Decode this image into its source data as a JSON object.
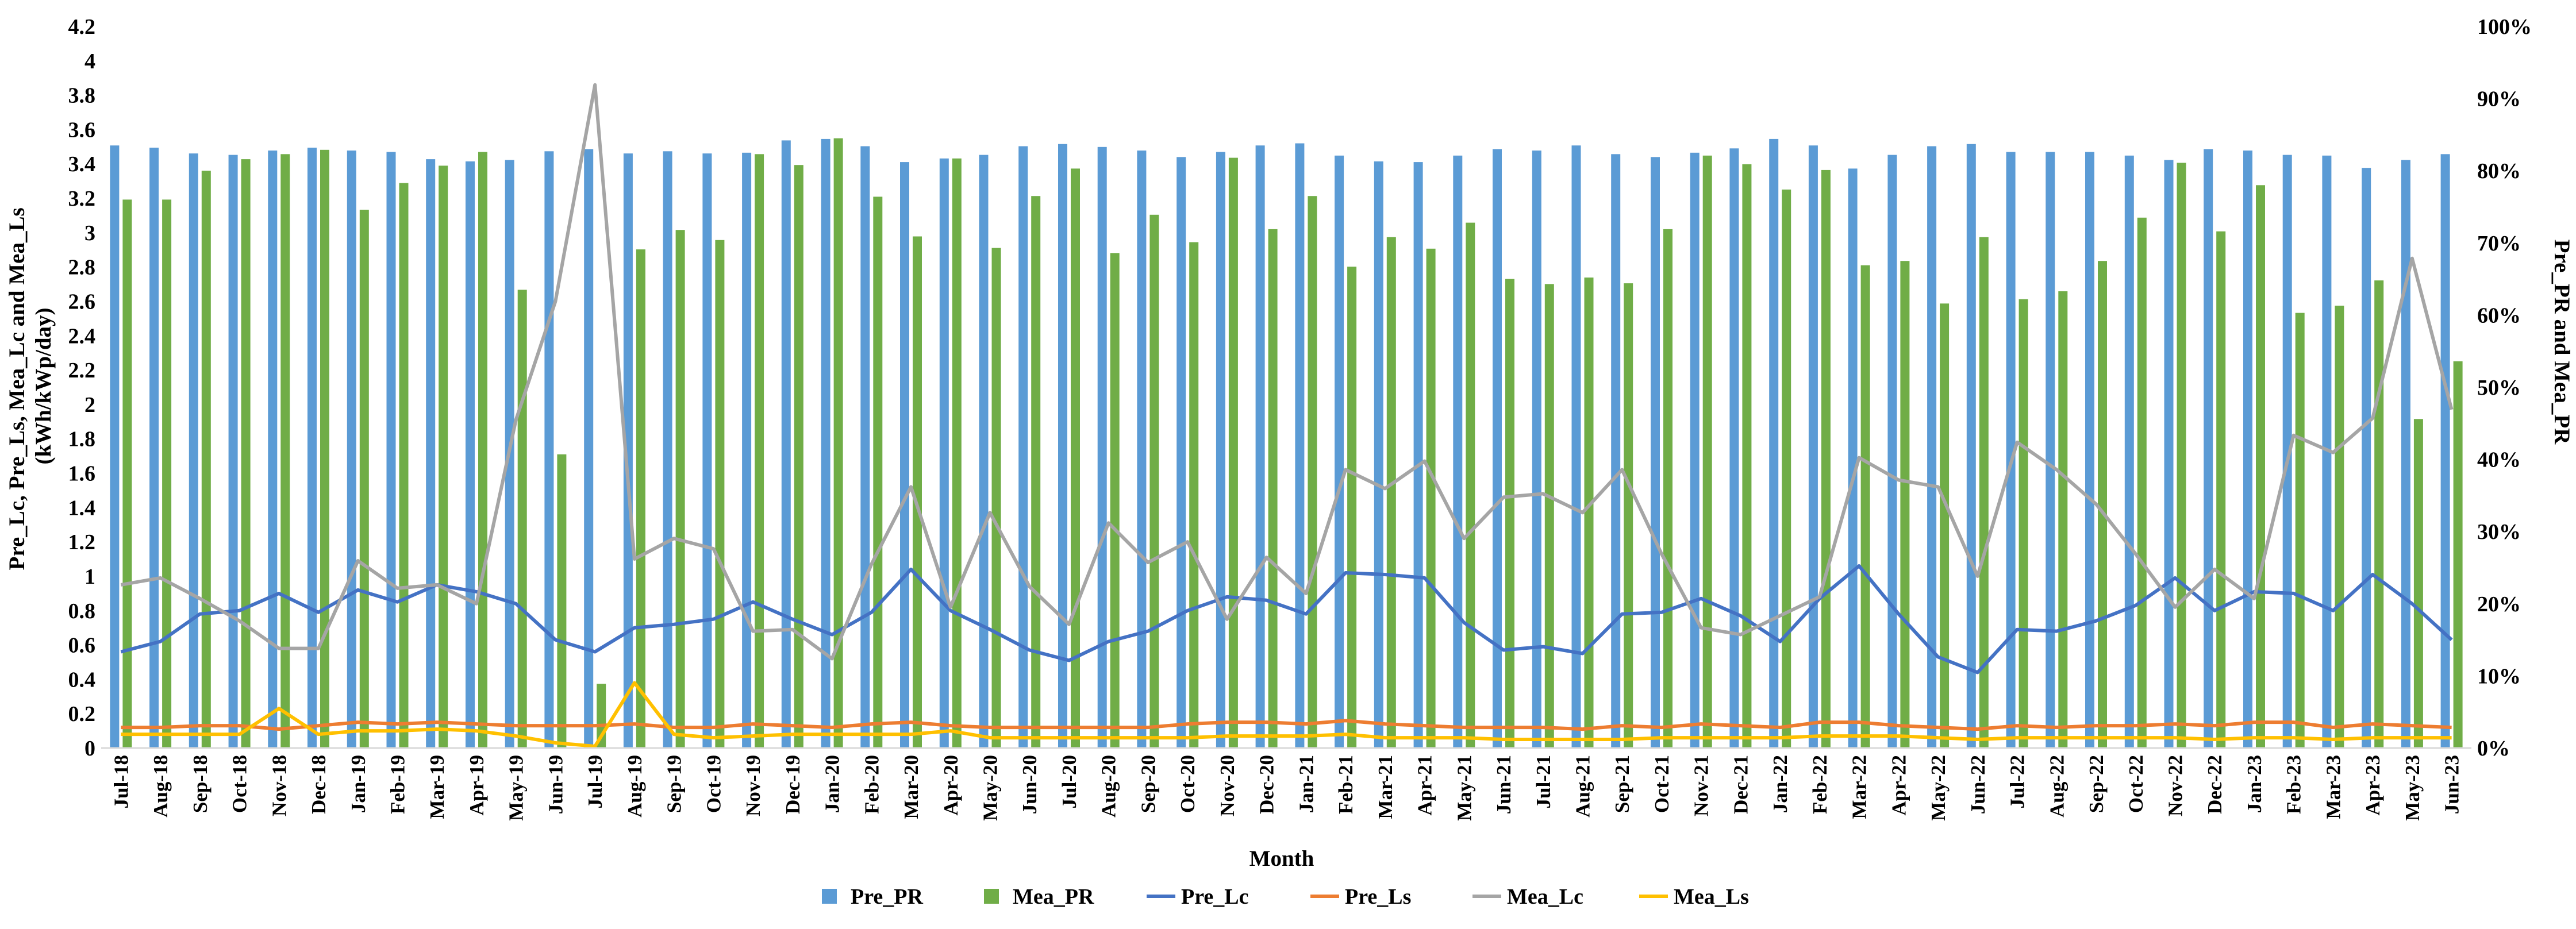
{
  "chart_data": {
    "type": "bar",
    "title": "",
    "xlabel": "Month",
    "ylabel_left": "Pre_Lc, Pre_Ls, Mea_Lc and Mea_Ls (kWh/kWp/day)",
    "ylabel_left_lines": [
      "Pre_Lc, Pre_Ls, Mea_Lc and Mea_Ls",
      "(kWh/kWp/day)"
    ],
    "ylabel_right": "Pre_PR and Mea_PR",
    "ylim_left": [
      0,
      4.2
    ],
    "ylim_right": [
      0,
      100
    ],
    "yticks_left": [
      "0",
      "0.2",
      "0.4",
      "0.6",
      "0.8",
      "1",
      "1.2",
      "1.4",
      "1.6",
      "1.8",
      "2",
      "2.2",
      "2.4",
      "2.6",
      "2.8",
      "3",
      "3.2",
      "3.4",
      "3.6",
      "3.8",
      "4",
      "4.2"
    ],
    "yticks_right": [
      "0%",
      "10%",
      "20%",
      "30%",
      "40%",
      "50%",
      "60%",
      "70%",
      "80%",
      "90%",
      "100%"
    ],
    "grid": false,
    "legend_position": "bottom",
    "categories": [
      "Jul-18",
      "Aug-18",
      "Sep-18",
      "Oct-18",
      "Nov-18",
      "Dec-18",
      "Jan-19",
      "Feb-19",
      "Mar-19",
      "Apr-19",
      "May-19",
      "Jun-19",
      "Jul-19",
      "Aug-19",
      "Sep-19",
      "Oct-19",
      "Nov-19",
      "Dec-19",
      "Jan-20",
      "Feb-20",
      "Mar-20",
      "Apr-20",
      "May-20",
      "Jun-20",
      "Jul-20",
      "Aug-20",
      "Sep-20",
      "Oct-20",
      "Nov-20",
      "Dec-20",
      "Jan-21",
      "Feb-21",
      "Mar-21",
      "Apr-21",
      "May-21",
      "Jun-21",
      "Jul-21",
      "Aug-21",
      "Sep-21",
      "Oct-21",
      "Nov-21",
      "Dec-21",
      "Jan-22",
      "Feb-22",
      "Mar-22",
      "Apr-22",
      "May-22",
      "Jun-22",
      "Jul-22",
      "Aug-22",
      "Sep-22",
      "Oct-22",
      "Nov-22",
      "Dec-22",
      "Jan-23",
      "Feb-23",
      "Mar-23",
      "Apr-23",
      "May-23",
      "Jun-23"
    ],
    "series": [
      {
        "name": "Pre_PR",
        "kind": "bar",
        "axis": "right",
        "color": "#5B9BD5",
        "values": [
          83.5,
          83.2,
          82.4,
          82.2,
          82.8,
          83.2,
          82.8,
          82.6,
          81.6,
          81.3,
          81.5,
          82.7,
          83.0,
          82.4,
          82.7,
          82.4,
          82.5,
          84.2,
          84.4,
          83.4,
          81.2,
          81.7,
          82.2,
          83.4,
          83.7,
          83.3,
          82.8,
          81.9,
          82.6,
          83.5,
          83.8,
          82.1,
          81.3,
          81.2,
          82.1,
          83.0,
          82.8,
          83.5,
          82.3,
          81.9,
          82.5,
          83.1,
          84.4,
          83.5,
          80.3,
          82.2,
          83.4,
          83.7,
          82.6,
          82.6,
          82.6,
          82.1,
          81.5,
          83.0,
          82.8,
          82.2,
          82.1,
          80.4,
          81.5,
          82.3
        ]
      },
      {
        "name": "Mea_PR",
        "kind": "bar",
        "axis": "right",
        "color": "#70AD47",
        "values": [
          76.0,
          76.0,
          80.0,
          81.6,
          82.3,
          82.9,
          74.6,
          78.3,
          80.7,
          82.6,
          63.5,
          40.7,
          8.9,
          69.1,
          71.8,
          70.4,
          82.3,
          80.8,
          84.5,
          76.4,
          70.9,
          81.7,
          69.3,
          76.5,
          80.3,
          68.6,
          73.9,
          70.1,
          81.8,
          71.9,
          76.5,
          66.7,
          70.8,
          69.2,
          72.8,
          65.0,
          64.3,
          65.2,
          64.4,
          71.9,
          82.1,
          80.9,
          77.4,
          80.1,
          66.9,
          67.5,
          61.6,
          70.8,
          62.2,
          63.3,
          67.5,
          73.5,
          81.1,
          71.6,
          78.0,
          60.3,
          61.3,
          64.8,
          45.6,
          53.6
        ]
      },
      {
        "name": "Pre_Lc",
        "kind": "line",
        "axis": "left",
        "color": "#4472C4",
        "values": [
          0.56,
          0.62,
          0.78,
          0.8,
          0.9,
          0.79,
          0.92,
          0.85,
          0.95,
          0.91,
          0.84,
          0.63,
          0.56,
          0.7,
          0.72,
          0.75,
          0.85,
          0.75,
          0.66,
          0.79,
          1.04,
          0.8,
          0.69,
          0.57,
          0.51,
          0.62,
          0.68,
          0.8,
          0.88,
          0.86,
          0.78,
          1.02,
          1.01,
          0.99,
          0.73,
          0.57,
          0.59,
          0.55,
          0.78,
          0.79,
          0.87,
          0.77,
          0.62,
          0.87,
          1.06,
          0.78,
          0.53,
          0.44,
          0.69,
          0.68,
          0.74,
          0.83,
          0.99,
          0.8,
          0.91,
          0.9,
          0.8,
          1.01,
          0.84,
          0.63
        ]
      },
      {
        "name": "Pre_Ls",
        "kind": "line",
        "axis": "left",
        "color": "#ED7D31",
        "values": [
          0.12,
          0.12,
          0.13,
          0.13,
          0.11,
          0.13,
          0.15,
          0.14,
          0.15,
          0.14,
          0.13,
          0.13,
          0.13,
          0.14,
          0.12,
          0.12,
          0.14,
          0.13,
          0.12,
          0.14,
          0.15,
          0.13,
          0.12,
          0.12,
          0.12,
          0.12,
          0.12,
          0.14,
          0.15,
          0.15,
          0.14,
          0.16,
          0.14,
          0.13,
          0.12,
          0.12,
          0.12,
          0.11,
          0.13,
          0.12,
          0.14,
          0.13,
          0.12,
          0.15,
          0.15,
          0.13,
          0.12,
          0.11,
          0.13,
          0.12,
          0.13,
          0.13,
          0.14,
          0.13,
          0.15,
          0.15,
          0.12,
          0.14,
          0.13,
          0.12
        ]
      },
      {
        "name": "Mea_Lc",
        "kind": "line",
        "axis": "left",
        "color": "#A5A5A5",
        "values": [
          0.95,
          0.99,
          0.87,
          0.74,
          0.58,
          0.58,
          1.09,
          0.93,
          0.95,
          0.84,
          1.91,
          2.6,
          3.86,
          1.1,
          1.22,
          1.16,
          0.68,
          0.69,
          0.52,
          1.07,
          1.52,
          0.82,
          1.37,
          0.94,
          0.72,
          1.31,
          1.08,
          1.2,
          0.75,
          1.11,
          0.9,
          1.62,
          1.51,
          1.67,
          1.22,
          1.46,
          1.48,
          1.37,
          1.62,
          1.13,
          0.7,
          0.66,
          0.77,
          0.88,
          1.69,
          1.56,
          1.52,
          1.0,
          1.78,
          1.62,
          1.42,
          1.13,
          0.82,
          1.04,
          0.87,
          1.82,
          1.72,
          1.92,
          2.85,
          1.97
        ]
      },
      {
        "name": "Mea_Ls",
        "kind": "line",
        "axis": "left",
        "color": "#FFC000",
        "values": [
          0.08,
          0.08,
          0.08,
          0.08,
          0.23,
          0.08,
          0.1,
          0.1,
          0.11,
          0.1,
          0.07,
          0.03,
          0.01,
          0.38,
          0.08,
          0.06,
          0.07,
          0.08,
          0.08,
          0.08,
          0.08,
          0.1,
          0.06,
          0.06,
          0.06,
          0.06,
          0.06,
          0.06,
          0.07,
          0.07,
          0.07,
          0.08,
          0.06,
          0.06,
          0.06,
          0.05,
          0.05,
          0.05,
          0.05,
          0.06,
          0.06,
          0.06,
          0.06,
          0.07,
          0.07,
          0.07,
          0.06,
          0.05,
          0.06,
          0.06,
          0.06,
          0.06,
          0.06,
          0.05,
          0.06,
          0.06,
          0.05,
          0.06,
          0.06,
          0.06
        ]
      }
    ]
  }
}
